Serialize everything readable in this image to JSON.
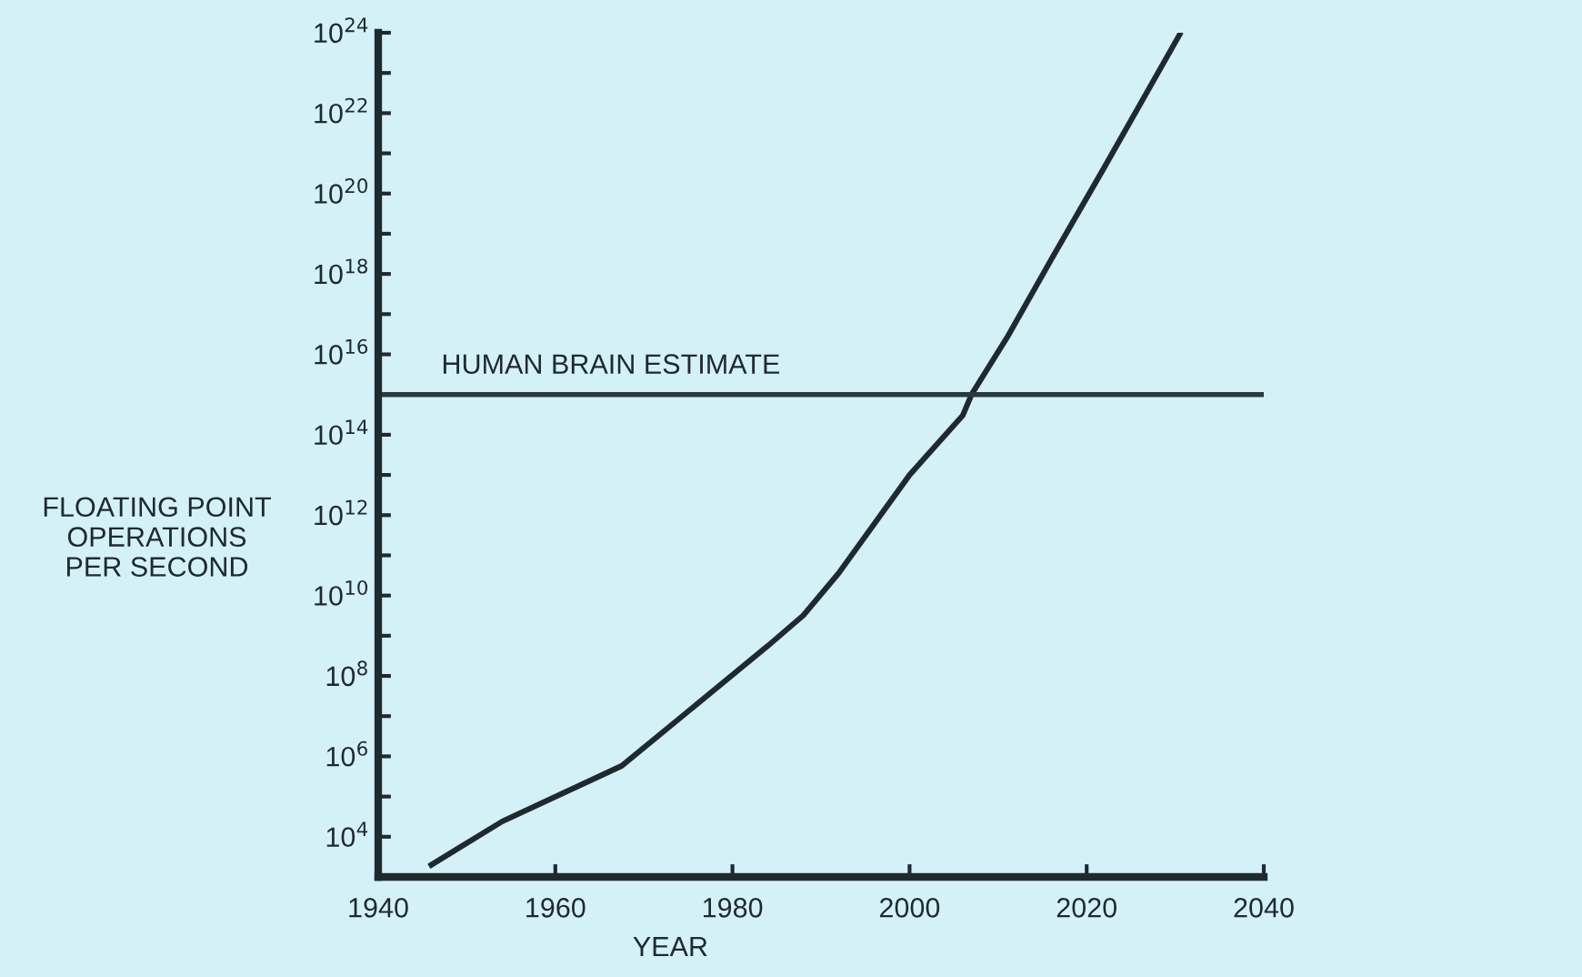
{
  "chart_data": {
    "type": "line",
    "xlabel": "YEAR",
    "ylabel": "FLOATING POINT\nOPERATIONS\nPER SECOND",
    "x": [
      1946,
      1954,
      1967.5,
      1984,
      1988,
      1992,
      2000,
      2006,
      2007,
      2011,
      2016,
      2022,
      2030.5
    ],
    "series": [
      {
        "color": "#1f2a30",
        "values": [
          2000.0,
          24000.0,
          580000.0,
          560000000.0,
          3200000000.0,
          36000000000.0,
          10000000000000.0,
          300000000000000.0,
          1000000000000000.0,
          2.6e+16,
          2.3e+18,
          4.5e+20,
          9e+23
        ]
      }
    ],
    "log": "y",
    "xlim": [
      1940,
      2040
    ],
    "ylim": [
      1000.0,
      1e+24
    ],
    "xticks": [
      1940,
      1960,
      1980,
      2000,
      2020,
      2040
    ],
    "yticks": [
      {
        "value": 10000.0,
        "label": "10$^{4}$"
      },
      {
        "value": 100000.0,
        "label": null
      },
      {
        "value": 1000000.0,
        "label": "10$^{6}$"
      },
      {
        "value": 10000000.0,
        "label": null
      },
      {
        "value": 100000000.0,
        "label": "10$^{8}$"
      },
      {
        "value": 1000000000.0,
        "label": null
      },
      {
        "value": 10000000000.0,
        "label": "10$^{10}$"
      },
      {
        "value": 100000000000.0,
        "label": null
      },
      {
        "value": 1000000000000.0,
        "label": "10$^{12}$"
      },
      {
        "value": 10000000000000.0,
        "label": null
      },
      {
        "value": 100000000000000.0,
        "label": "10$^{14}$"
      },
      {
        "value": 1000000000000000.0,
        "label": null
      },
      {
        "value": 1e+16,
        "label": "10$^{16}$"
      },
      {
        "value": 1e+17,
        "label": null
      },
      {
        "value": 1e+18,
        "label": "10$^{18}$"
      },
      {
        "value": 1e+19,
        "label": null
      },
      {
        "value": 1e+20,
        "label": "10$^{20}$"
      },
      {
        "value": 1e+21,
        "label": null
      },
      {
        "value": 1e+22,
        "label": "10$^{22}$"
      },
      {
        "value": 1e+23,
        "label": null
      },
      {
        "value": 1e+24,
        "label": "10$^{24}$"
      }
    ],
    "ref_lines": [
      {
        "axis": "y",
        "value": 1000000000000000.0,
        "label": "HUMAN BRAIN ESTIMATE",
        "color": "#2a3a40"
      }
    ],
    "marker": "none",
    "line_style": "solid"
  }
}
